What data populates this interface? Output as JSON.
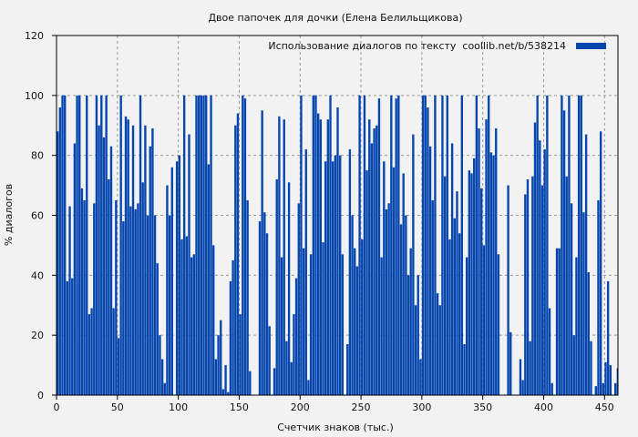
{
  "chart_data": {
    "type": "bar",
    "title": "Двое папочек для дочки (Елена Белильщикова)",
    "xlabel": "Счетчик знаков (тыс.)",
    "ylabel": "% диалогов",
    "xlim": [
      0,
      461
    ],
    "ylim": [
      0,
      120
    ],
    "xticks": [
      0,
      50,
      100,
      150,
      200,
      250,
      300,
      350,
      400,
      450
    ],
    "yticks": [
      0,
      20,
      40,
      60,
      80,
      100,
      120
    ],
    "grid": true,
    "legend": {
      "placement": "top-right",
      "entries": [
        "Использование диалогов по тексту  coollib.net/b/538214"
      ]
    },
    "bar_color": "#0646ae",
    "bin_width": 2,
    "series": [
      {
        "name": "Использование диалогов по тексту  coollib.net/b/538214",
        "x_start": 0,
        "step": 2,
        "values": [
          88,
          96,
          100,
          100,
          38,
          63,
          39,
          84,
          100,
          100,
          69,
          65,
          100,
          27,
          29,
          64,
          100,
          90,
          100,
          86,
          100,
          72,
          83,
          29,
          65,
          19,
          100,
          58,
          93,
          92,
          63,
          90,
          62,
          64,
          100,
          71,
          90,
          60,
          83,
          89,
          60,
          44,
          20,
          12,
          4,
          70,
          60,
          76,
          0,
          78,
          80,
          52,
          100,
          53,
          87,
          46,
          47,
          100,
          100,
          100,
          100,
          100,
          77,
          100,
          50,
          12,
          20,
          25,
          2,
          10,
          1,
          38,
          45,
          90,
          94,
          27,
          100,
          99,
          65,
          8,
          0,
          0,
          0,
          58,
          95,
          61,
          54,
          23,
          0,
          9,
          72,
          93,
          46,
          92,
          18,
          71,
          11,
          27,
          39,
          64,
          100,
          49,
          82,
          5,
          47,
          100,
          100,
          94,
          92,
          51,
          78,
          92,
          100,
          78,
          80,
          96,
          80,
          47,
          0,
          17,
          82,
          60,
          49,
          43,
          100,
          52,
          100,
          75,
          92,
          84,
          89,
          90,
          99,
          46,
          78,
          62,
          64,
          100,
          76,
          99,
          100,
          57,
          74,
          60,
          40,
          49,
          87,
          30,
          40,
          12,
          100,
          100,
          96,
          83,
          65,
          100,
          34,
          30,
          100,
          73,
          100,
          52,
          84,
          59,
          68,
          54,
          100,
          17,
          46,
          75,
          74,
          79,
          100,
          89,
          69,
          50,
          92,
          100,
          81,
          80,
          89,
          47,
          0,
          0,
          0,
          70,
          21,
          0,
          0,
          0,
          12,
          5,
          67,
          72,
          18,
          73,
          91,
          100,
          85,
          70,
          82,
          100,
          29,
          4,
          0,
          49,
          49,
          100,
          95,
          73,
          100,
          64,
          20,
          46,
          100,
          100,
          61,
          87,
          41,
          18,
          0,
          3,
          65,
          88,
          4,
          11,
          38,
          10,
          0,
          4,
          9
        ]
      }
    ]
  }
}
